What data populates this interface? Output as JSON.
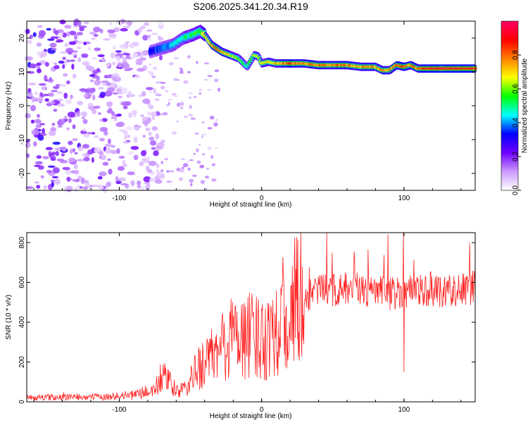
{
  "title": "S206.2025.341.20.34.R19",
  "chart_data": [
    {
      "type": "heatmap",
      "xlabel": "Height of straight line (km)",
      "ylabel": "Frequency (Hz)",
      "xlim": [
        -165,
        150
      ],
      "ylim": [
        -25,
        25
      ],
      "xticks": [
        -100,
        0,
        100
      ],
      "xtick_labels": [
        "-100",
        "0",
        "100"
      ],
      "yticks": [
        -20,
        -10,
        0,
        10,
        20
      ],
      "ytick_labels": [
        "-20",
        "-10",
        "0",
        "10",
        "20"
      ],
      "colorbar": {
        "label": "Normalized spectral amplitude",
        "range": [
          0,
          1
        ],
        "ticks": [
          0.0,
          0.2,
          0.4,
          0.6,
          0.8
        ],
        "tick_labels": [
          "0.0",
          "0.2",
          "0.4",
          "0.6",
          "0.8"
        ],
        "colors": [
          "#ffffff",
          "#cc99ff",
          "#7000ff",
          "#0000ff",
          "#00ffff",
          "#00ff00",
          "#ffff00",
          "#ff8000",
          "#ff0000",
          "#ff0066"
        ]
      },
      "ridge": {
        "x": [
          -78,
          -70,
          -62,
          -55,
          -48,
          -43,
          -40,
          -35,
          -28,
          -22,
          -16,
          -10,
          -5,
          -2,
          0,
          5,
          10,
          20,
          30,
          40,
          50,
          60,
          70,
          80,
          85,
          90,
          95,
          100,
          105,
          110,
          120,
          130,
          140,
          150
        ],
        "frequency_hz": [
          16,
          17,
          18,
          20,
          21,
          22,
          21,
          18,
          16,
          15,
          14,
          11.5,
          15,
          14.5,
          12.5,
          13,
          12.5,
          12.5,
          12.5,
          12,
          12,
          12,
          11.5,
          11.5,
          10.5,
          10.5,
          12,
          11.5,
          12,
          11,
          11,
          11,
          11,
          11
        ],
        "amplitude": [
          0.35,
          0.4,
          0.45,
          0.5,
          0.55,
          0.6,
          0.7,
          0.75,
          0.85,
          0.7,
          0.6,
          0.5,
          0.65,
          0.7,
          0.7,
          0.7,
          0.75,
          0.85,
          0.8,
          0.8,
          0.85,
          0.85,
          0.8,
          0.75,
          0.8,
          0.8,
          0.85,
          0.85,
          0.8,
          0.85,
          0.95,
          0.95,
          0.95,
          0.95
        ]
      },
      "noise_region_km": [
        -165,
        -70
      ]
    },
    {
      "type": "line",
      "xlabel": "Height of straight line (km)",
      "ylabel": "SNR (10 * v/v)",
      "xlim": [
        -165,
        150
      ],
      "ylim": [
        0,
        850
      ],
      "xticks": [
        -100,
        0,
        100
      ],
      "xtick_labels": [
        "-100",
        "0",
        "100"
      ],
      "yticks": [
        0,
        200,
        400,
        600,
        800
      ],
      "ytick_labels": [
        "0",
        "200",
        "400",
        "600",
        "800"
      ],
      "color": "#ff2020",
      "trend": {
        "x": [
          -165,
          -110,
          -90,
          -75,
          -70,
          -65,
          -60,
          -55,
          -50,
          -45,
          -40,
          -35,
          -30,
          -25,
          -20,
          -15,
          -10,
          -5,
          0,
          5,
          10,
          15,
          20,
          25,
          30,
          40,
          50,
          60,
          70,
          80,
          90,
          95,
          100,
          105,
          110,
          120,
          130,
          140,
          150
        ],
        "snr": [
          22,
          25,
          35,
          60,
          130,
          95,
          55,
          60,
          100,
          170,
          200,
          220,
          250,
          300,
          330,
          340,
          330,
          320,
          330,
          350,
          390,
          430,
          460,
          500,
          530,
          560,
          560,
          565,
          560,
          555,
          545,
          550,
          560,
          560,
          565,
          565,
          560,
          565,
          570
        ]
      },
      "noise_amplitude": [
        0.35,
        0.7
      ],
      "spike": {
        "x": 99.5,
        "max": 850,
        "min": 150
      }
    }
  ]
}
